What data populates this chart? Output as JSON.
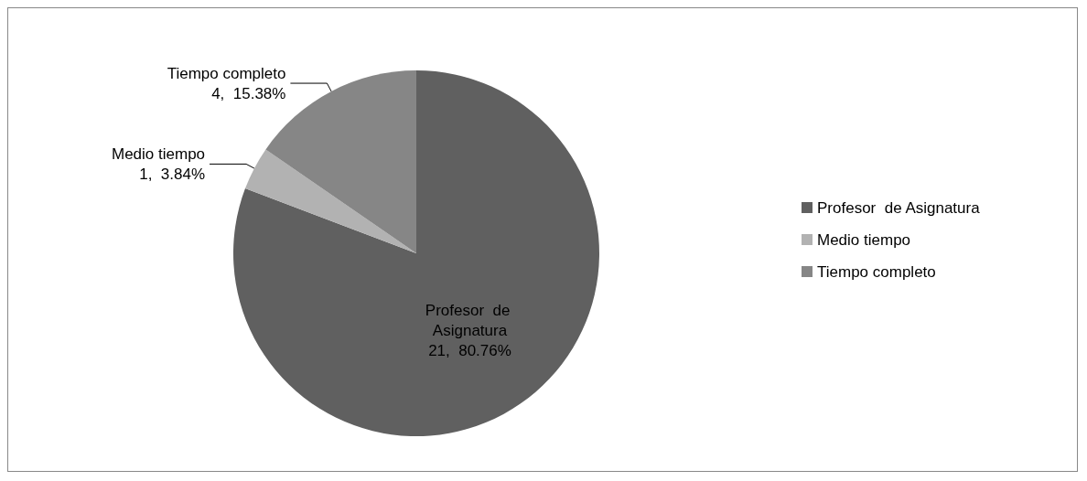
{
  "chart_data": {
    "type": "pie",
    "categories": [
      "Profesor  de Asignatura",
      "Medio tiempo",
      "Tiempo completo"
    ],
    "values": [
      21,
      1,
      4
    ],
    "value_labels": [
      "21,  80.76%",
      "1,  3.84%",
      "4,  15.38%"
    ],
    "colors": [
      "#606060",
      "#b2b2b2",
      "#868686"
    ],
    "legend": "right"
  }
}
